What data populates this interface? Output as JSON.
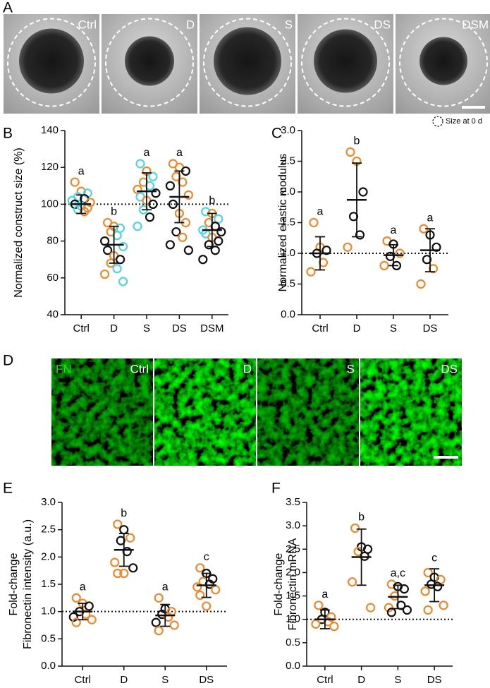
{
  "panel_labels": [
    "A",
    "B",
    "C",
    "D",
    "E",
    "F"
  ],
  "panel_a": {
    "images": [
      "Ctrl",
      "D",
      "S",
      "DS",
      "DSM"
    ],
    "legend": "Size at 0 d"
  },
  "panel_d": {
    "stain": "FN",
    "images": [
      "Ctrl",
      "D",
      "S",
      "DS"
    ]
  },
  "chart_data": [
    {
      "type": "dotplot",
      "y_label": [
        "Normalized construct size (%)"
      ],
      "categories": [
        "Ctrl",
        "D",
        "S",
        "DS",
        "DSM"
      ],
      "letters": [
        "a",
        "b",
        "a",
        "a",
        "b"
      ],
      "ylim": [
        40,
        140
      ],
      "yticks": [
        40,
        60,
        80,
        100,
        120,
        140
      ],
      "reference_line": 100,
      "means": [
        100,
        78,
        107,
        104,
        86
      ],
      "sds": [
        5,
        10,
        10,
        14,
        9
      ],
      "points": [
        [
          {
            "value": 112,
            "color": "#f0882a"
          },
          {
            "value": 107,
            "color": "#f0882a"
          },
          {
            "value": 106,
            "color": "#4fd4e8"
          },
          {
            "value": 104,
            "color": "#4fd4e8"
          },
          {
            "value": 103,
            "color": "#111111"
          },
          {
            "value": 102,
            "color": "#4fd4e8"
          },
          {
            "value": 101,
            "color": "#f0882a"
          },
          {
            "value": 100,
            "color": "#111111"
          },
          {
            "value": 99,
            "color": "#4fd4e8"
          },
          {
            "value": 98,
            "color": "#f0882a"
          },
          {
            "value": 97,
            "color": "#4fd4e8"
          },
          {
            "value": 96,
            "color": "#f0882a"
          }
        ],
        [
          {
            "value": 90,
            "color": "#f0882a"
          },
          {
            "value": 88,
            "color": "#f0882a"
          },
          {
            "value": 87,
            "color": "#4fd4e8"
          },
          {
            "value": 85,
            "color": "#f0882a"
          },
          {
            "value": 83,
            "color": "#4fd4e8"
          },
          {
            "value": 80,
            "color": "#111111"
          },
          {
            "value": 77,
            "color": "#4fd4e8"
          },
          {
            "value": 75,
            "color": "#111111"
          },
          {
            "value": 72,
            "color": "#f0882a"
          },
          {
            "value": 70,
            "color": "#111111"
          },
          {
            "value": 68,
            "color": "#f0882a"
          },
          {
            "value": 65,
            "color": "#4fd4e8"
          },
          {
            "value": 62,
            "color": "#f0882a"
          },
          {
            "value": 58,
            "color": "#4fd4e8"
          }
        ],
        [
          {
            "value": 122,
            "color": "#4fd4e8"
          },
          {
            "value": 118,
            "color": "#f0882a"
          },
          {
            "value": 115,
            "color": "#4fd4e8"
          },
          {
            "value": 112,
            "color": "#f0882a"
          },
          {
            "value": 110,
            "color": "#4fd4e8"
          },
          {
            "value": 108,
            "color": "#f0882a"
          },
          {
            "value": 106,
            "color": "#111111"
          },
          {
            "value": 104,
            "color": "#4fd4e8"
          },
          {
            "value": 102,
            "color": "#f0882a"
          },
          {
            "value": 100,
            "color": "#111111"
          },
          {
            "value": 97,
            "color": "#4fd4e8"
          },
          {
            "value": 93,
            "color": "#111111"
          },
          {
            "value": 88,
            "color": "#4fd4e8"
          }
        ],
        [
          {
            "value": 122,
            "color": "#f0882a"
          },
          {
            "value": 120,
            "color": "#f0882a"
          },
          {
            "value": 118,
            "color": "#111111"
          },
          {
            "value": 115,
            "color": "#f0882a"
          },
          {
            "value": 112,
            "color": "#f0882a"
          },
          {
            "value": 110,
            "color": "#111111"
          },
          {
            "value": 105,
            "color": "#f0882a"
          },
          {
            "value": 100,
            "color": "#111111"
          },
          {
            "value": 95,
            "color": "#f0882a"
          },
          {
            "value": 90,
            "color": "#f0882a"
          },
          {
            "value": 85,
            "color": "#111111"
          },
          {
            "value": 82,
            "color": "#f0882a"
          },
          {
            "value": 78,
            "color": "#111111"
          },
          {
            "value": 75,
            "color": "#111111"
          }
        ],
        [
          {
            "value": 96,
            "color": "#4fd4e8"
          },
          {
            "value": 95,
            "color": "#f0882a"
          },
          {
            "value": 92,
            "color": "#4fd4e8"
          },
          {
            "value": 90,
            "color": "#f0882a"
          },
          {
            "value": 88,
            "color": "#111111"
          },
          {
            "value": 86,
            "color": "#4fd4e8"
          },
          {
            "value": 85,
            "color": "#111111"
          },
          {
            "value": 84,
            "color": "#4fd4e8"
          },
          {
            "value": 82,
            "color": "#f0882a"
          },
          {
            "value": 80,
            "color": "#111111"
          },
          {
            "value": 78,
            "color": "#111111"
          },
          {
            "value": 75,
            "color": "#111111"
          },
          {
            "value": 70,
            "color": "#111111"
          }
        ]
      ]
    },
    {
      "type": "dotplot",
      "y_label": [
        "Normalized elastic modulus"
      ],
      "categories": [
        "Ctrl",
        "D",
        "S",
        "DS"
      ],
      "letters": [
        "a",
        "b",
        "a",
        "a"
      ],
      "ylim": [
        0,
        3
      ],
      "yticks": [
        {
          "value": 0,
          "label": "0.0"
        },
        0.5,
        {
          "value": 1,
          "label": "1.0"
        },
        1.5,
        {
          "value": 2,
          "label": "2.0"
        },
        2.5,
        {
          "value": 3,
          "label": "3.0"
        }
      ],
      "reference_line": 1,
      "means": [
        1.0,
        1.87,
        0.97,
        1.05
      ],
      "sds": [
        0.27,
        0.6,
        0.17,
        0.35
      ],
      "points": [
        [
          {
            "value": 1.5,
            "color": "#f0882a"
          },
          {
            "value": 1.1,
            "color": "#f0882a"
          },
          {
            "value": 1.05,
            "color": "#111111"
          },
          {
            "value": 1.0,
            "color": "#111111"
          },
          {
            "value": 0.85,
            "color": "#f0882a"
          },
          {
            "value": 0.7,
            "color": "#f0882a"
          }
        ],
        [
          {
            "value": 2.65,
            "color": "#f0882a"
          },
          {
            "value": 2.5,
            "color": "#f0882a"
          },
          {
            "value": 2.0,
            "color": "#111111"
          },
          {
            "value": 1.6,
            "color": "#111111"
          },
          {
            "value": 1.3,
            "color": "#111111"
          },
          {
            "value": 1.1,
            "color": "#f0882a"
          }
        ],
        [
          {
            "value": 1.2,
            "color": "#f0882a"
          },
          {
            "value": 1.15,
            "color": "#111111"
          },
          {
            "value": 1.0,
            "color": "#f0882a"
          },
          {
            "value": 0.95,
            "color": "#111111"
          },
          {
            "value": 0.8,
            "color": "#111111"
          },
          {
            "value": 0.8,
            "color": "#f0882a"
          }
        ],
        [
          {
            "value": 1.4,
            "color": "#f0882a"
          },
          {
            "value": 1.3,
            "color": "#111111"
          },
          {
            "value": 1.1,
            "color": "#111111"
          },
          {
            "value": 0.9,
            "color": "#111111"
          },
          {
            "value": 0.75,
            "color": "#f0882a"
          },
          {
            "value": 0.5,
            "color": "#f0882a"
          }
        ]
      ]
    },
    {
      "type": "dotplot",
      "y_label": [
        "Fold-change",
        "Fibronectin intensity (a.u.)"
      ],
      "categories": [
        "Ctrl",
        "D",
        "S",
        "DS"
      ],
      "letters": [
        "a",
        "b",
        "a",
        "c"
      ],
      "ylim": [
        0,
        3
      ],
      "yticks": [
        {
          "value": 0,
          "label": "0.0"
        },
        0.5,
        {
          "value": 1,
          "label": "1.0"
        },
        1.5,
        {
          "value": 2,
          "label": "2.0"
        },
        2.5,
        {
          "value": 3,
          "label": "3.0"
        }
      ],
      "reference_line": 1,
      "means": [
        1.0,
        2.13,
        0.93,
        1.48
      ],
      "sds": [
        0.15,
        0.3,
        0.2,
        0.22
      ],
      "points": [
        [
          {
            "value": 1.25,
            "color": "#f0882a"
          },
          {
            "value": 1.15,
            "color": "#f0882a"
          },
          {
            "value": 1.1,
            "color": "#111111"
          },
          {
            "value": 1.0,
            "color": "#111111"
          },
          {
            "value": 0.95,
            "color": "#f0882a"
          },
          {
            "value": 0.9,
            "color": "#111111"
          },
          {
            "value": 0.85,
            "color": "#f0882a"
          },
          {
            "value": 0.8,
            "color": "#f0882a"
          }
        ],
        [
          {
            "value": 2.6,
            "color": "#f0882a"
          },
          {
            "value": 2.5,
            "color": "#111111"
          },
          {
            "value": 2.35,
            "color": "#f0882a"
          },
          {
            "value": 2.3,
            "color": "#111111"
          },
          {
            "value": 2.1,
            "color": "#111111"
          },
          {
            "value": 1.9,
            "color": "#f0882a"
          },
          {
            "value": 1.8,
            "color": "#111111"
          },
          {
            "value": 1.7,
            "color": "#f0882a"
          },
          {
            "value": 1.7,
            "color": "#f0882a"
          }
        ],
        [
          {
            "value": 1.25,
            "color": "#f0882a"
          },
          {
            "value": 1.05,
            "color": "#111111"
          },
          {
            "value": 1.0,
            "color": "#f0882a"
          },
          {
            "value": 0.95,
            "color": "#111111"
          },
          {
            "value": 0.9,
            "color": "#f0882a"
          },
          {
            "value": 0.8,
            "color": "#111111"
          },
          {
            "value": 0.75,
            "color": "#f0882a"
          },
          {
            "value": 0.65,
            "color": "#f0882a"
          }
        ],
        [
          {
            "value": 1.8,
            "color": "#f0882a"
          },
          {
            "value": 1.7,
            "color": "#111111"
          },
          {
            "value": 1.6,
            "color": "#111111"
          },
          {
            "value": 1.55,
            "color": "#f0882a"
          },
          {
            "value": 1.5,
            "color": "#111111"
          },
          {
            "value": 1.45,
            "color": "#f0882a"
          },
          {
            "value": 1.4,
            "color": "#f0882a"
          },
          {
            "value": 1.3,
            "color": "#f0882a"
          },
          {
            "value": 1.1,
            "color": "#f0882a"
          }
        ]
      ]
    },
    {
      "type": "dotplot",
      "y_label": [
        "Fold-change",
        "Fibronectin mRNA"
      ],
      "categories": [
        "Ctrl",
        "D",
        "S",
        "DS"
      ],
      "letters": [
        "a",
        "b",
        "a,c",
        "c"
      ],
      "ylim": [
        0,
        3.5
      ],
      "yticks": [
        {
          "value": 0,
          "label": "0.0"
        },
        0.5,
        {
          "value": 1,
          "label": "1.0"
        },
        1.5,
        {
          "value": 2,
          "label": "2.0"
        },
        2.5,
        {
          "value": 3,
          "label": "3.0"
        },
        3.5
      ],
      "reference_line": 1,
      "means": [
        1.0,
        2.33,
        1.48,
        1.73
      ],
      "sds": [
        0.2,
        0.6,
        0.25,
        0.35
      ],
      "points": [
        [
          {
            "value": 1.3,
            "color": "#f0882a"
          },
          {
            "value": 1.15,
            "color": "#111111"
          },
          {
            "value": 1.05,
            "color": "#f0882a"
          },
          {
            "value": 1.0,
            "color": "#111111"
          },
          {
            "value": 0.95,
            "color": "#f0882a"
          },
          {
            "value": 0.9,
            "color": "#f0882a"
          },
          {
            "value": 0.85,
            "color": "#f0882a"
          }
        ],
        [
          {
            "value": 2.95,
            "color": "#f0882a"
          },
          {
            "value": 2.55,
            "color": "#111111"
          },
          {
            "value": 2.5,
            "color": "#111111"
          },
          {
            "value": 2.45,
            "color": "#f0882a"
          },
          {
            "value": 2.35,
            "color": "#111111"
          },
          {
            "value": 1.8,
            "color": "#f0882a"
          },
          {
            "value": 1.25,
            "color": "#f0882a"
          }
        ],
        [
          {
            "value": 1.75,
            "color": "#f0882a"
          },
          {
            "value": 1.7,
            "color": "#111111"
          },
          {
            "value": 1.65,
            "color": "#111111"
          },
          {
            "value": 1.5,
            "color": "#f0882a"
          },
          {
            "value": 1.3,
            "color": "#111111"
          },
          {
            "value": 1.25,
            "color": "#f0882a"
          },
          {
            "value": 1.2,
            "color": "#111111"
          },
          {
            "value": 1.15,
            "color": "#111111"
          }
        ],
        [
          {
            "value": 2.0,
            "color": "#f0882a"
          },
          {
            "value": 1.9,
            "color": "#111111"
          },
          {
            "value": 1.85,
            "color": "#f0882a"
          },
          {
            "value": 1.75,
            "color": "#111111"
          },
          {
            "value": 1.7,
            "color": "#111111"
          },
          {
            "value": 1.6,
            "color": "#f0882a"
          },
          {
            "value": 1.3,
            "color": "#f0882a"
          },
          {
            "value": 1.2,
            "color": "#f0882a"
          }
        ]
      ]
    }
  ]
}
